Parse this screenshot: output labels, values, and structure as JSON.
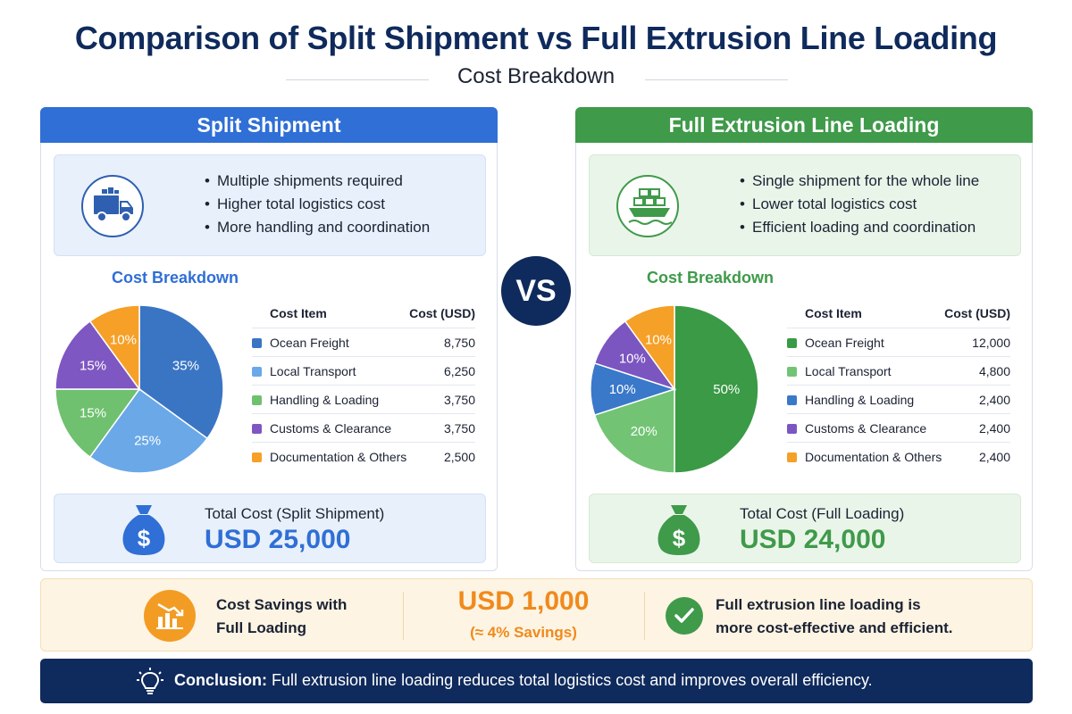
{
  "title": "Comparison of Split Shipment vs Full Extrusion Line Loading",
  "subtitle": "Cost Breakdown",
  "vs_label": "VS",
  "table_headers": {
    "item": "Cost Item",
    "cost": "Cost (USD)"
  },
  "split": {
    "header": "Split Shipment",
    "bullets": [
      "Multiple shipments required",
      "Higher total logistics cost",
      "More handling and coordination"
    ],
    "breakdown_title": "Cost Breakdown",
    "total_label": "Total Cost (Split Shipment)",
    "total_value": "USD 25,000"
  },
  "full": {
    "header": "Full Extrusion Line Loading",
    "bullets": [
      "Single shipment for the whole line",
      "Lower total logistics cost",
      "Efficient loading and coordination"
    ],
    "breakdown_title": "Cost Breakdown",
    "total_label": "Total Cost (Full Loading)",
    "total_value": "USD 24,000"
  },
  "savings": {
    "label_line1": "Cost Savings with",
    "label_line2": "Full Loading",
    "amount": "USD 1,000",
    "percent": "(≈ 4% Savings)",
    "note_line1": "Full extrusion line loading is",
    "note_line2": "more cost-effective and efficient."
  },
  "conclusion": {
    "lead": "Conclusion:",
    "text": " Full extrusion line loading reduces total logistics cost and improves overall efficiency."
  },
  "icons": {
    "split_icon": "truck-icon",
    "full_icon": "cargo-ship-icon",
    "total_icon": "money-bag-icon",
    "savings_icon": "chart-down-icon",
    "check_icon": "check-icon",
    "conclusion_icon": "lightbulb-icon"
  },
  "chart_data": [
    {
      "type": "pie",
      "categories": [
        "Ocean Freight",
        "Local Transport",
        "Handling & Loading",
        "Customs & Clearance",
        "Documentation & Others"
      ],
      "values": [
        8750,
        6250,
        3750,
        3750,
        2500
      ],
      "display_values": [
        "8,750",
        "6,250",
        "3,750",
        "3,750",
        "2,500"
      ],
      "percent_labels": [
        "35%",
        "25%",
        "15%",
        "15%",
        "10%"
      ],
      "colors": [
        "#3a75c4",
        "#6aa8e8",
        "#6fc06f",
        "#7e57c2",
        "#f6a027"
      ]
    },
    {
      "type": "pie",
      "categories": [
        "Ocean Freight",
        "Local Transport",
        "Handling & Loading",
        "Customs & Clearance",
        "Documentation & Others"
      ],
      "values": [
        12000,
        4800,
        2400,
        2400,
        2400
      ],
      "display_values": [
        "12,000",
        "4,800",
        "2,400",
        "2,400",
        "2,400"
      ],
      "percent_labels": [
        "50%",
        "20%",
        "10%",
        "10%",
        "10%"
      ],
      "colors": [
        "#3a9a45",
        "#72c474",
        "#3a78c9",
        "#7b55c0",
        "#f5a026"
      ]
    }
  ]
}
